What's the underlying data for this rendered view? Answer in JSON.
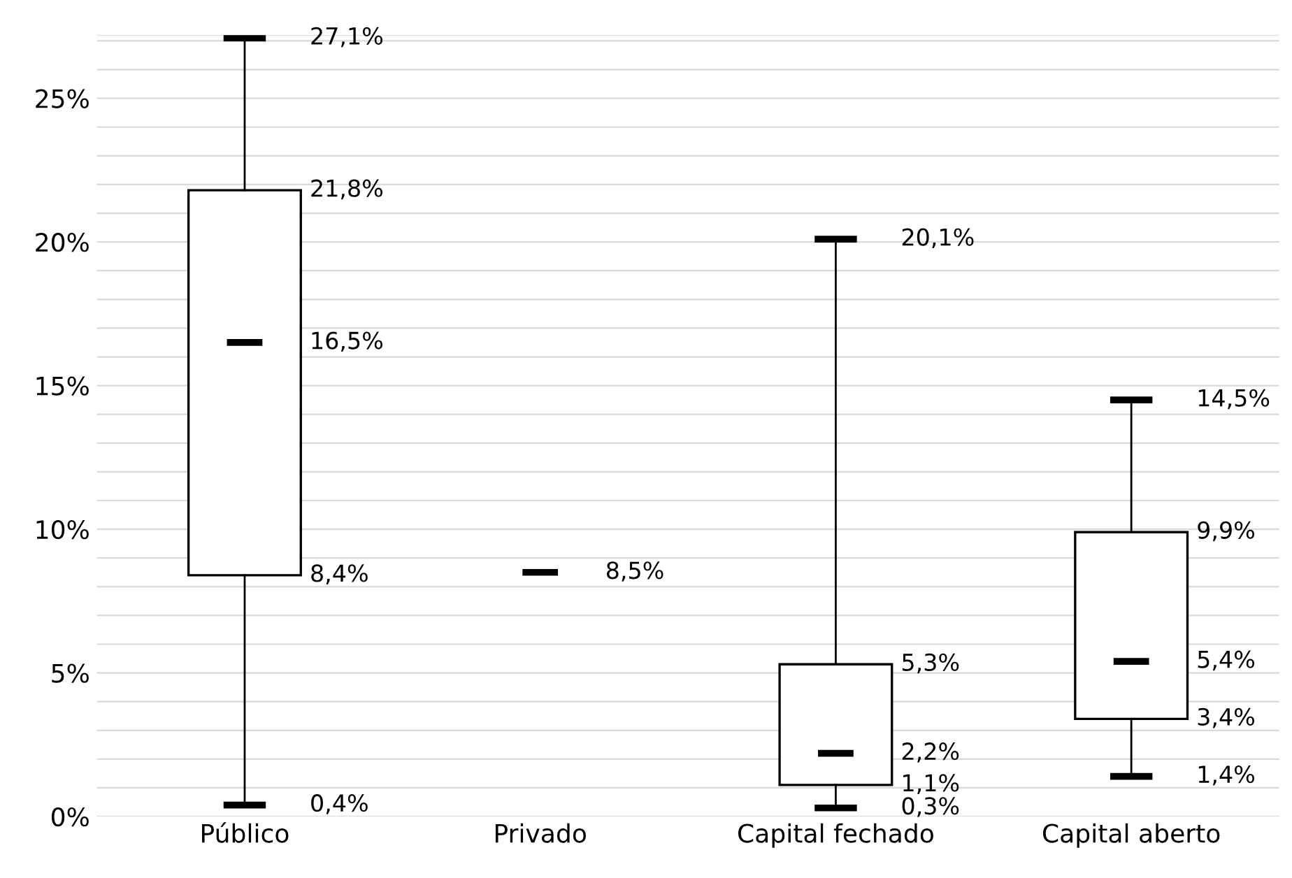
{
  "chart_data": {
    "type": "box",
    "categories": [
      "Público",
      "Privado",
      "Capital fechado",
      "Capital aberto"
    ],
    "boxes": [
      {
        "low": 0.4,
        "q1": 8.4,
        "median": 16.5,
        "q3": 21.8,
        "high": 27.1
      },
      {
        "low": 8.5,
        "q1": 8.5,
        "median": 8.5,
        "q3": 8.5,
        "high": 8.5
      },
      {
        "low": 0.3,
        "q1": 1.1,
        "median": 2.2,
        "q3": 5.3,
        "high": 20.1
      },
      {
        "low": 1.4,
        "q1": 3.4,
        "median": 5.4,
        "q3": 9.9,
        "high": 14.5
      }
    ],
    "ylim": [
      0,
      27.2
    ],
    "yticks": [
      {
        "value": 0,
        "label": "0%"
      },
      {
        "value": 1,
        "label": null
      },
      {
        "value": 2,
        "label": null
      },
      {
        "value": 3,
        "label": null
      },
      {
        "value": 4,
        "label": null
      },
      {
        "value": 5,
        "label": "5%"
      },
      {
        "value": 6,
        "label": null
      },
      {
        "value": 7,
        "label": null
      },
      {
        "value": 8,
        "label": null
      },
      {
        "value": 9,
        "label": null
      },
      {
        "value": 10,
        "label": "10%"
      },
      {
        "value": 11,
        "label": null
      },
      {
        "value": 12,
        "label": null
      },
      {
        "value": 13,
        "label": null
      },
      {
        "value": 14,
        "label": null
      },
      {
        "value": 15,
        "label": "15%"
      },
      {
        "value": 16,
        "label": null
      },
      {
        "value": 17,
        "label": null
      },
      {
        "value": 18,
        "label": null
      },
      {
        "value": 19,
        "label": null
      },
      {
        "value": 20,
        "label": "20%"
      },
      {
        "value": 21,
        "label": null
      },
      {
        "value": 22,
        "label": null
      },
      {
        "value": 23,
        "label": null
      },
      {
        "value": 24,
        "label": null
      },
      {
        "value": 25,
        "label": "25%"
      },
      {
        "value": 26,
        "label": null
      },
      {
        "value": 27,
        "label": null
      }
    ],
    "grid": "y",
    "annotations": [
      {
        "text": "27,1%",
        "x": "Público",
        "y": 27.1
      },
      {
        "text": "21,8%",
        "x": "Público",
        "y": 21.8
      },
      {
        "text": "16,5%",
        "x": "Público",
        "y": 16.5
      },
      {
        "text": "8,4%",
        "x": "Público",
        "y": 8.4
      },
      {
        "text": "0,4%",
        "x": "Público",
        "y": 0.4
      },
      {
        "text": "8,5%",
        "x": "Privado",
        "y": 8.5
      },
      {
        "text": "20,1%",
        "x": "Capital fechado",
        "y": 20.1
      },
      {
        "text": "5,3%",
        "x": "Capital fechado",
        "y": 5.3
      },
      {
        "text": "2,2%",
        "x": "Capital fechado",
        "y": 2.2
      },
      {
        "text": "1,1%",
        "x": "Capital fechado",
        "y": 1.1
      },
      {
        "text": "0,3%",
        "x": "Capital fechado",
        "y": 0.3
      },
      {
        "text": "14,5%",
        "x": "Capital aberto",
        "y": 14.5
      },
      {
        "text": "9,9%",
        "x": "Capital aberto",
        "y": 9.9
      },
      {
        "text": "5,4%",
        "x": "Capital aberto",
        "y": 5.4
      },
      {
        "text": "3,4%",
        "x": "Capital aberto",
        "y": 3.4
      },
      {
        "text": "1,4%",
        "x": "Capital aberto",
        "y": 1.4
      }
    ]
  }
}
